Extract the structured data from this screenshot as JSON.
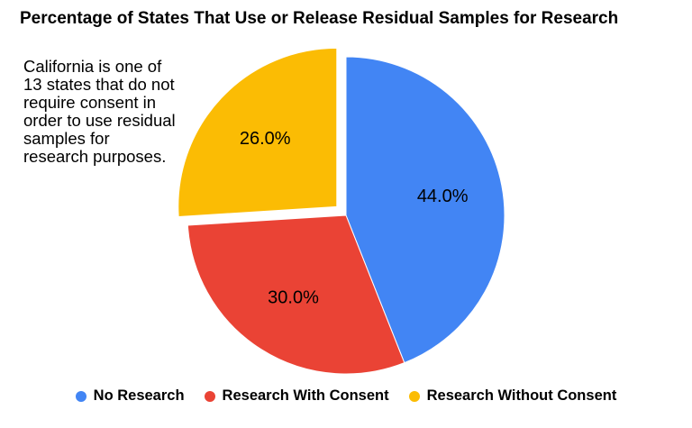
{
  "chart_data": {
    "type": "pie",
    "title": "Percentage of States That Use or Release Residual Samples for Research",
    "annotation": [
      "California is one of",
      "13 states that do not",
      "require consent in",
      "order to use residual",
      "samples for",
      "research purposes."
    ],
    "slices": [
      {
        "label": "No Research",
        "value": 44.0,
        "display": "44.0%",
        "color": "#4285F4",
        "exploded": false
      },
      {
        "label": "Research With Consent",
        "value": 30.0,
        "display": "30.0%",
        "color": "#EA4335",
        "exploded": false
      },
      {
        "label": "Research Without Consent",
        "value": 26.0,
        "display": "26.0%",
        "color": "#FBBC04",
        "exploded": true
      }
    ],
    "legend_position": "bottom"
  }
}
